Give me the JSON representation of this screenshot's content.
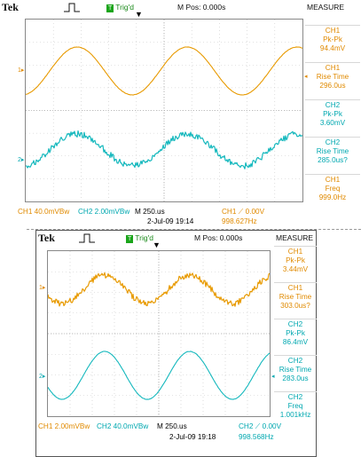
{
  "colors": {
    "ch1": "#e89a00",
    "ch2": "#14b8bd",
    "grid": "#c8c8c8"
  },
  "scope1": {
    "brand": "Tek",
    "trig_badge": "T",
    "trig_status": "Trig'd",
    "mpos": "M Pos: 0.000s",
    "measure_title": "MEASURE",
    "measurements": [
      {
        "ch": "CH1",
        "label": "Pk-Pk",
        "value": "94.4mV",
        "color": "ch1"
      },
      {
        "ch": "CH1",
        "label": "Rise Time",
        "value": "296.0us",
        "color": "ch1"
      },
      {
        "ch": "CH2",
        "label": "Pk-Pk",
        "value": "3.60mV",
        "color": "ch2"
      },
      {
        "ch": "CH2",
        "label": "Rise Time",
        "value": "285.0us?",
        "color": "ch2"
      },
      {
        "ch": "CH1",
        "label": "Freq",
        "value": "999.0Hz",
        "color": "ch1"
      }
    ],
    "bottom": {
      "ch1_scale": "CH1  40.0mVBw",
      "ch2_scale": "CH2  2.00mVBw",
      "timebase": "M 250.us",
      "trigger": "CH1 ⟋ 0.00V",
      "date": "2-Jul-09 19:14",
      "freq": "998.627Hz"
    }
  },
  "scope2": {
    "brand": "Tek",
    "trig_badge": "T",
    "trig_status": "Trig'd",
    "mpos": "M Pos: 0.000s",
    "measure_title": "MEASURE",
    "measurements": [
      {
        "ch": "CH1",
        "label": "Pk-Pk",
        "value": "3.44mV",
        "color": "ch1"
      },
      {
        "ch": "CH1",
        "label": "Rise Time",
        "value": "303.0us?",
        "color": "ch1"
      },
      {
        "ch": "CH2",
        "label": "Pk-Pk",
        "value": "86.4mV",
        "color": "ch2"
      },
      {
        "ch": "CH2",
        "label": "Rise Time",
        "value": "283.0us",
        "color": "ch2"
      },
      {
        "ch": "CH2",
        "label": "Freq",
        "value": "1.001kHz",
        "color": "ch2"
      }
    ],
    "bottom": {
      "ch1_scale": "CH1  2.00mVBw",
      "ch2_scale": "CH2  40.0mVBw",
      "timebase": "M 250.us",
      "trigger": "CH2 ⟋ 0.00V",
      "date": "2-Jul-09 19:18",
      "freq": "998.568Hz"
    }
  },
  "chart_data": [
    {
      "type": "line",
      "series": [
        {
          "name": "CH1",
          "waveform": "sine",
          "frequency_hz": 999.0,
          "pk_pk_mv": 94.4,
          "noise": "low"
        },
        {
          "name": "CH2",
          "waveform": "sine",
          "frequency_hz": 999.0,
          "pk_pk_mv": 3.6,
          "noise": "high"
        }
      ],
      "timebase": "M 250.us",
      "grid": true
    },
    {
      "type": "line",
      "series": [
        {
          "name": "CH1",
          "waveform": "sine",
          "frequency_hz": 1001.0,
          "pk_pk_mv": 3.44,
          "noise": "high"
        },
        {
          "name": "CH2",
          "waveform": "sine",
          "frequency_hz": 1001.0,
          "pk_pk_mv": 86.4,
          "noise": "low"
        }
      ],
      "timebase": "M 250.us",
      "grid": true
    }
  ]
}
